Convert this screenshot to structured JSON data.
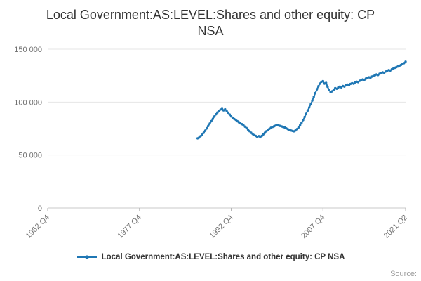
{
  "page": {
    "title_line1": "Local Government:AS:LEVEL:Shares and other equity: CP",
    "title_line2": "NSA",
    "source_label": "Source:"
  },
  "chart_data": {
    "type": "line",
    "title": "Local Government:AS:LEVEL:Shares and other equity: CP NSA",
    "xlabel": "",
    "ylabel": "",
    "grid": "horizontal",
    "legend_position": "bottom",
    "xlim": [
      1962.75,
      2021.25
    ],
    "ylim": [
      0,
      150000
    ],
    "y_ticks": [
      {
        "value": 0,
        "label": "0"
      },
      {
        "value": 50000,
        "label": "50 000"
      },
      {
        "value": 100000,
        "label": "100 000"
      },
      {
        "value": 150000,
        "label": "150 000"
      }
    ],
    "x_ticks": [
      {
        "pos": 1962.75,
        "label": "1962 Q4"
      },
      {
        "pos": 1977.75,
        "label": "1977 Q4"
      },
      {
        "pos": 1992.75,
        "label": "1992 Q4"
      },
      {
        "pos": 2007.75,
        "label": "2007 Q4"
      },
      {
        "pos": 2021.25,
        "label": "2021 Q2"
      }
    ],
    "series": [
      {
        "name": "Local Government:AS:LEVEL:Shares and other equity: CP NSA",
        "color": "#1f77b4",
        "points": [
          [
            1987.25,
            65800
          ],
          [
            1987.5,
            66500
          ],
          [
            1987.75,
            67800
          ],
          [
            1988.0,
            69200
          ],
          [
            1988.25,
            71000
          ],
          [
            1988.5,
            73000
          ],
          [
            1988.75,
            75200
          ],
          [
            1989.0,
            77500
          ],
          [
            1989.25,
            79800
          ],
          [
            1989.5,
            82000
          ],
          [
            1989.75,
            84200
          ],
          [
            1990.0,
            86500
          ],
          [
            1990.25,
            88500
          ],
          [
            1990.5,
            90200
          ],
          [
            1990.75,
            91800
          ],
          [
            1991.0,
            93000
          ],
          [
            1991.25,
            93600
          ],
          [
            1991.5,
            92200
          ],
          [
            1991.75,
            93200
          ],
          [
            1992.0,
            91800
          ],
          [
            1992.25,
            90000
          ],
          [
            1992.5,
            88200
          ],
          [
            1992.75,
            86500
          ],
          [
            1993.0,
            85200
          ],
          [
            1993.25,
            84000
          ],
          [
            1993.5,
            83200
          ],
          [
            1993.75,
            82000
          ],
          [
            1994.0,
            81000
          ],
          [
            1994.25,
            80000
          ],
          [
            1994.5,
            79200
          ],
          [
            1994.75,
            78000
          ],
          [
            1995.0,
            76800
          ],
          [
            1995.25,
            75500
          ],
          [
            1995.5,
            74000
          ],
          [
            1995.75,
            72500
          ],
          [
            1996.0,
            71000
          ],
          [
            1996.25,
            69800
          ],
          [
            1996.5,
            68800
          ],
          [
            1996.75,
            68000
          ],
          [
            1997.0,
            67200
          ],
          [
            1997.25,
            67800
          ],
          [
            1997.5,
            66800
          ],
          [
            1997.75,
            68000
          ],
          [
            1998.0,
            69500
          ],
          [
            1998.25,
            71000
          ],
          [
            1998.5,
            72500
          ],
          [
            1998.75,
            73800
          ],
          [
            1999.0,
            74800
          ],
          [
            1999.25,
            75800
          ],
          [
            1999.5,
            76500
          ],
          [
            1999.75,
            77200
          ],
          [
            2000.0,
            77800
          ],
          [
            2000.25,
            78200
          ],
          [
            2000.5,
            78000
          ],
          [
            2000.75,
            77500
          ],
          [
            2001.0,
            77000
          ],
          [
            2001.25,
            76500
          ],
          [
            2001.5,
            76000
          ],
          [
            2001.75,
            75200
          ],
          [
            2002.0,
            74500
          ],
          [
            2002.25,
            73800
          ],
          [
            2002.5,
            73200
          ],
          [
            2002.75,
            72800
          ],
          [
            2003.0,
            72400
          ],
          [
            2003.25,
            73200
          ],
          [
            2003.5,
            74500
          ],
          [
            2003.75,
            76000
          ],
          [
            2004.0,
            78000
          ],
          [
            2004.25,
            80500
          ],
          [
            2004.5,
            83000
          ],
          [
            2004.75,
            86000
          ],
          [
            2005.0,
            89000
          ],
          [
            2005.25,
            92000
          ],
          [
            2005.5,
            95000
          ],
          [
            2005.75,
            98000
          ],
          [
            2006.0,
            101500
          ],
          [
            2006.25,
            105000
          ],
          [
            2006.5,
            108500
          ],
          [
            2006.75,
            112000
          ],
          [
            2007.0,
            115000
          ],
          [
            2007.25,
            117500
          ],
          [
            2007.5,
            119200
          ],
          [
            2007.75,
            119800
          ],
          [
            2008.0,
            117500
          ],
          [
            2008.25,
            118200
          ],
          [
            2008.5,
            114500
          ],
          [
            2008.75,
            111500
          ],
          [
            2009.0,
            109300
          ],
          [
            2009.25,
            110200
          ],
          [
            2009.5,
            111800
          ],
          [
            2009.75,
            113200
          ],
          [
            2010.0,
            112600
          ],
          [
            2010.25,
            113800
          ],
          [
            2010.5,
            114600
          ],
          [
            2010.75,
            113900
          ],
          [
            2011.0,
            115200
          ],
          [
            2011.25,
            114700
          ],
          [
            2011.5,
            115900
          ],
          [
            2011.75,
            116500
          ],
          [
            2012.0,
            116100
          ],
          [
            2012.25,
            117200
          ],
          [
            2012.5,
            117900
          ],
          [
            2012.75,
            117400
          ],
          [
            2013.0,
            118600
          ],
          [
            2013.25,
            119300
          ],
          [
            2013.5,
            118900
          ],
          [
            2013.75,
            120100
          ],
          [
            2014.0,
            120700
          ],
          [
            2014.25,
            121400
          ],
          [
            2014.5,
            120900
          ],
          [
            2014.75,
            122100
          ],
          [
            2015.0,
            122700
          ],
          [
            2015.25,
            123400
          ],
          [
            2015.5,
            122900
          ],
          [
            2015.75,
            124100
          ],
          [
            2016.0,
            124700
          ],
          [
            2016.25,
            125400
          ],
          [
            2016.5,
            126100
          ],
          [
            2016.75,
            125600
          ],
          [
            2017.0,
            126800
          ],
          [
            2017.25,
            127500
          ],
          [
            2017.5,
            128100
          ],
          [
            2017.75,
            127700
          ],
          [
            2018.0,
            128900
          ],
          [
            2018.25,
            129600
          ],
          [
            2018.5,
            130200
          ],
          [
            2018.75,
            129800
          ],
          [
            2019.0,
            131000
          ],
          [
            2019.25,
            131700
          ],
          [
            2019.5,
            132400
          ],
          [
            2019.75,
            133100
          ],
          [
            2020.0,
            133700
          ],
          [
            2020.25,
            134400
          ],
          [
            2020.5,
            135100
          ],
          [
            2020.75,
            135900
          ],
          [
            2021.0,
            136800
          ],
          [
            2021.25,
            138200
          ]
        ]
      }
    ],
    "colors": {
      "series_blue": "#1f77b4",
      "gridline": "#e6e6e6",
      "axis_line": "#c8c8c8",
      "tick_text": "#707070",
      "title_text": "#333333"
    }
  }
}
